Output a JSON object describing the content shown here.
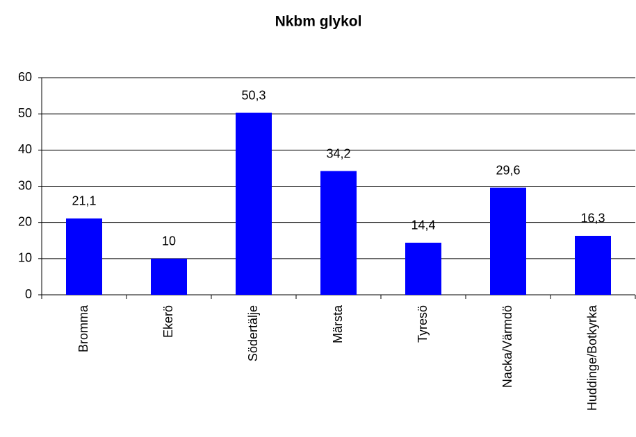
{
  "chart_data": {
    "type": "bar",
    "title": "Nkbm glykol",
    "categories": [
      "Bromma",
      "Ekerö",
      "Södertälje",
      "Märsta",
      "Tyresö",
      "Nacka/Värmdö",
      "Huddinge/Botkyrka"
    ],
    "values": [
      21.1,
      10,
      50.3,
      34.2,
      14.4,
      29.6,
      16.3
    ],
    "value_labels": [
      "21,1",
      "10",
      "50,3",
      "34,2",
      "14,4",
      "29,6",
      "16,3"
    ],
    "color": "#0000ff",
    "ylim": [
      0,
      60
    ],
    "yticks": [
      0,
      10,
      20,
      30,
      40,
      50,
      60
    ],
    "grid": true
  }
}
